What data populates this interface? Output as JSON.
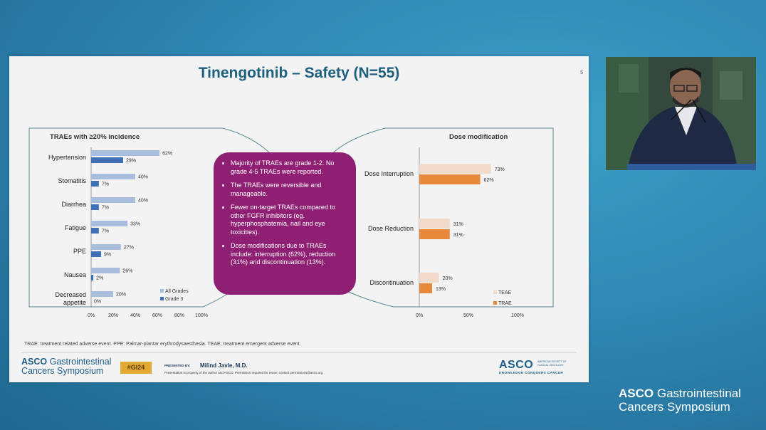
{
  "slide": {
    "title": "Tinengotinib – Safety (N=55)",
    "slide_number": "5",
    "footnote": "TRAE: treatment related adverse event. PPE: Palmar-plantar erythrodysaesthesia. TEAE: treatment emergent adverse event.",
    "summary_points": [
      "Majority of TRAEs are grade 1-2. No grade 4-5 TRAEs were reported.",
      "The TRAEs were reversible and manageable.",
      "Fewer on-target TRAEs compared to other FGFR inhibitors (eg. hyperphosphatemia, nail and eye toxicities).",
      "Dose modifications due to TRAEs include: interruption (62%), reduction (31%) and discontinuation (13%)."
    ]
  },
  "footer": {
    "logo_line1_bold": "ASCO",
    "logo_line1_rest": " Gastrointestinal",
    "logo_line2": "Cancers Symposium",
    "hashtag": "#GI24",
    "presented_by": "PRESENTED BY:",
    "presenter": "Milind Javle, M.D.",
    "disclaimer": "Presentation is property of the author and ASCO. Permission required for reuse; contact permissions@asco.org",
    "asco_big": "ASCO",
    "asco_small": "AMERICAN SOCIETY OF CLINICAL ONCOLOGY",
    "asco_tag": "KNOWLEDGE CONQUERS CANCER"
  },
  "overlay": {
    "line1_bold": "ASCO",
    "line1_rest": " Gastrointestinal",
    "line2": "Cancers Symposium"
  },
  "colors": {
    "all_grades": "#a9bedc",
    "grade3": "#3f6fb5",
    "teae": "#f1dccb",
    "trae": "#e8883a",
    "summary_box": "#8e1f72"
  },
  "chart_data": [
    {
      "type": "bar",
      "orientation": "horizontal",
      "title": "TRAEs with ≥20% incidence",
      "categories": [
        "Hypertension",
        "Stomatitis",
        "Diarrhea",
        "Fatigue",
        "PPE",
        "Nausea",
        "Decreased appetite"
      ],
      "series": [
        {
          "name": "All Grades",
          "values": [
            62,
            40,
            40,
            33,
            27,
            26,
            20
          ]
        },
        {
          "name": "Grade 3",
          "values": [
            29,
            7,
            7,
            7,
            9,
            2,
            0
          ]
        }
      ],
      "xlim": [
        0,
        100
      ],
      "ticks": [
        "0%",
        "20%",
        "40%",
        "60%",
        "80%",
        "100%"
      ],
      "legend": "bottom-right"
    },
    {
      "type": "bar",
      "orientation": "horizontal",
      "title": "Dose modification",
      "categories": [
        "Dose Interruption",
        "Dose Reduction",
        "Discontinuation"
      ],
      "series": [
        {
          "name": "TEAE",
          "values": [
            73,
            31,
            20
          ]
        },
        {
          "name": "TRAE",
          "values": [
            62,
            31,
            13
          ]
        }
      ],
      "xlim": [
        0,
        100
      ],
      "ticks": [
        "0%",
        "50%",
        "100%"
      ],
      "legend": "bottom-right"
    }
  ]
}
